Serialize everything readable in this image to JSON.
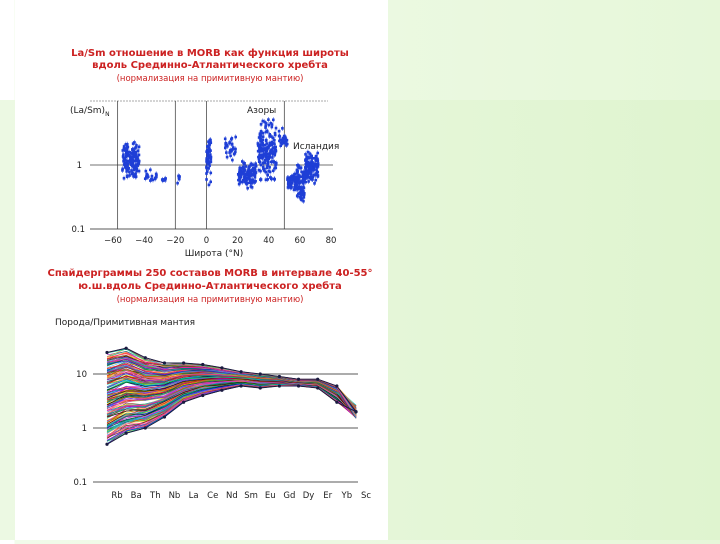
{
  "slide": {
    "colors": {
      "title": "#cc2222",
      "points": "#1f3fd6",
      "background": "#e6f7d9"
    }
  },
  "chart_data": [
    {
      "type": "scatter",
      "title": "La/Sm отношение в MORB как функция широты",
      "title_line2": "вдоль Срединно-Атлантического хребта",
      "subtitle": "(нормализация на примитивную мантию)",
      "ylabel": "(La/Sm)",
      "ylabel_subscript": "N",
      "xlabel": "Широта (°N)",
      "xlim": [
        -60,
        80
      ],
      "ylim": [
        0.1,
        10
      ],
      "yscale": "log",
      "xticks": [
        "−60",
        "−40",
        "−20",
        "0",
        "20",
        "40",
        "60",
        "80"
      ],
      "yticks": [
        "0.1",
        "1"
      ],
      "annotations": [
        {
          "text": "Азоры",
          "x": 39,
          "y": 6.5
        },
        {
          "text": "Исландия",
          "x": 64,
          "y": 2.6
        }
      ],
      "point_clusters": [
        {
          "x": [
            -54,
            -43
          ],
          "y": [
            0.5,
            2.8
          ],
          "count": 140
        },
        {
          "x": [
            -40,
            -32
          ],
          "y": [
            0.45,
            0.9
          ],
          "count": 20
        },
        {
          "x": [
            -29,
            -26
          ],
          "y": [
            0.5,
            0.7
          ],
          "count": 5
        },
        {
          "x": [
            -19,
            -17
          ],
          "y": [
            0.5,
            0.75
          ],
          "count": 5
        },
        {
          "x": [
            0,
            3
          ],
          "y": [
            0.4,
            5
          ],
          "count": 50
        },
        {
          "x": [
            12,
            19
          ],
          "y": [
            0.9,
            3.5
          ],
          "count": 30
        },
        {
          "x": [
            20,
            32
          ],
          "y": [
            0.4,
            1.3
          ],
          "count": 120
        },
        {
          "x": [
            33,
            45
          ],
          "y": [
            0.4,
            7
          ],
          "count": 170
        },
        {
          "x": [
            46,
            52
          ],
          "y": [
            1.5,
            4
          ],
          "count": 25
        },
        {
          "x": [
            52,
            58
          ],
          "y": [
            0.35,
            0.8
          ],
          "count": 60
        },
        {
          "x": [
            58,
            63
          ],
          "y": [
            0.15,
            1.3
          ],
          "count": 80
        },
        {
          "x": [
            63,
            72
          ],
          "y": [
            0.4,
            2
          ],
          "count": 120
        }
      ]
    },
    {
      "type": "line",
      "title": "Спайдерграммы 250 составов MORB в интервале 40-55°",
      "title_line2": "ю.ш.вдоль Срединно-Атлантического хребта",
      "subtitle": "(нормализация на примитивную мантию)",
      "ylabel": "Порода/Примитивная мантия",
      "yscale": "log",
      "ylim": [
        0.1,
        50
      ],
      "yticks": [
        "10",
        "1",
        "0.1"
      ],
      "categories": [
        "Rb",
        "Ba",
        "Th",
        "Nb",
        "La",
        "Ce",
        "Nd",
        "Sm",
        "Eu",
        "Gd",
        "Dy",
        "Er",
        "Yb",
        "Sc"
      ],
      "envelope_upper": [
        25,
        30,
        20,
        16,
        16,
        15,
        13,
        11,
        10,
        9,
        8,
        8,
        6,
        2
      ],
      "envelope_lower": [
        0.5,
        0.8,
        1,
        1.6,
        3,
        4,
        5,
        6,
        5.5,
        6,
        6,
        5.5,
        3,
        2
      ],
      "series_count": 250
    }
  ]
}
